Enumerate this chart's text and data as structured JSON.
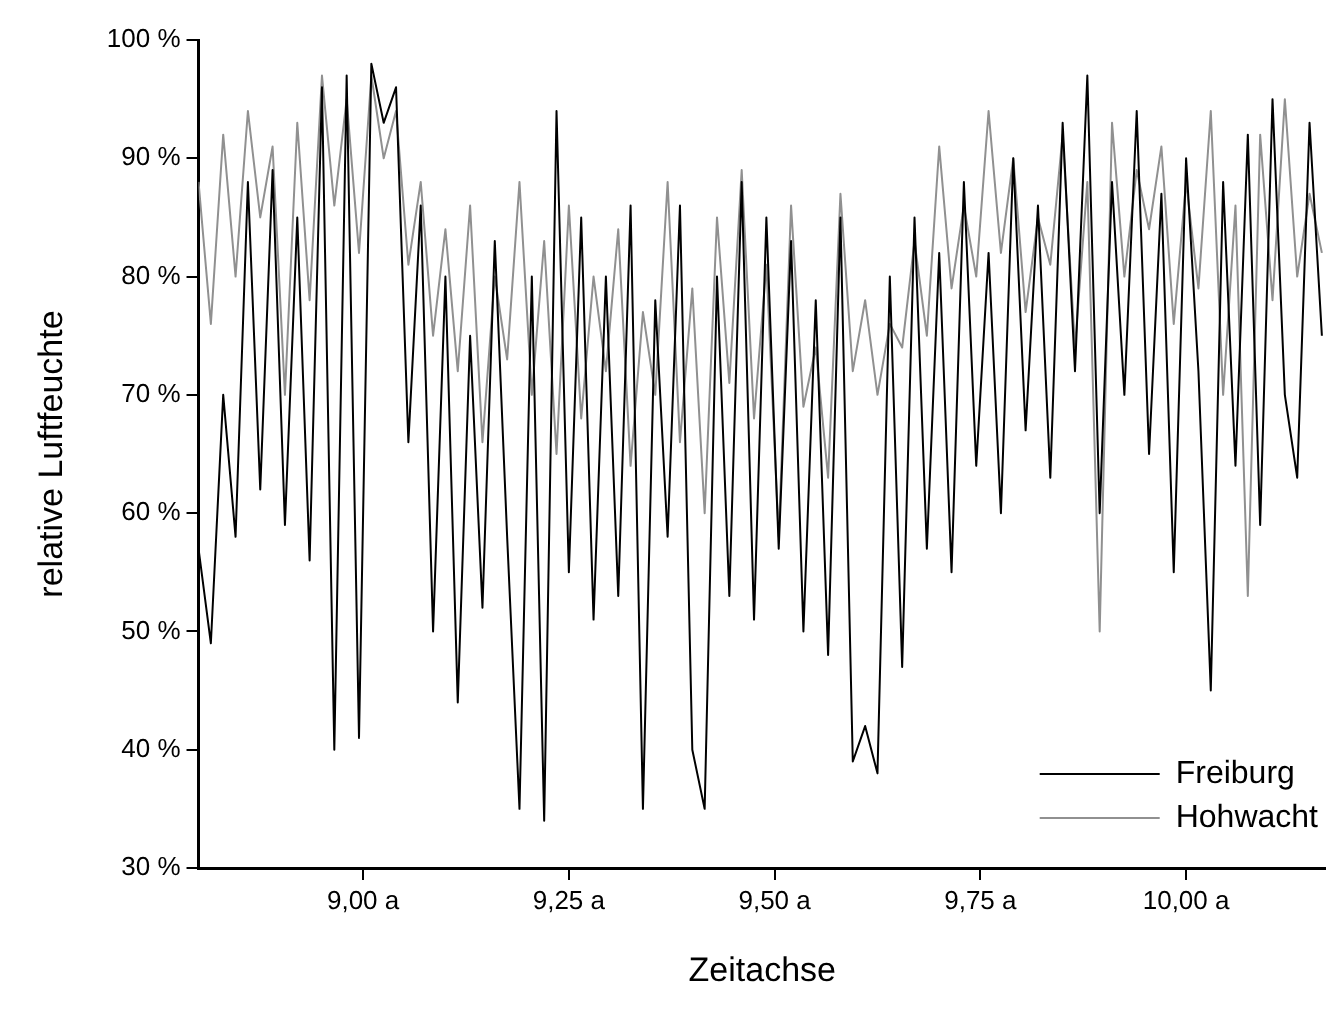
{
  "chart_data": {
    "type": "line",
    "xlabel": "Zeitachse",
    "ylabel": "relative Luftfeuchte",
    "xlim": [
      8.8,
      10.17
    ],
    "ylim": [
      30,
      100
    ],
    "xticks": [
      {
        "value": 9,
        "label": "9,00 a"
      },
      {
        "value": 9.25,
        "label": "9,25 a"
      },
      {
        "value": 9.5,
        "label": "9,50 a"
      },
      {
        "value": 9.75,
        "label": "9,75 a"
      },
      {
        "value": 10,
        "label": "10,00 a"
      }
    ],
    "yticks": [
      {
        "value": 30,
        "label": "30 %"
      },
      {
        "value": 40,
        "label": "40 %"
      },
      {
        "value": 50,
        "label": "50 %"
      },
      {
        "value": 60,
        "label": "60 %"
      },
      {
        "value": 70,
        "label": "70 %"
      },
      {
        "value": 80,
        "label": "80 %"
      },
      {
        "value": 90,
        "label": "90 %"
      },
      {
        "value": 100,
        "label": "100 %"
      }
    ],
    "grid": false,
    "legend": "bottom right",
    "marker": "none",
    "line_style": "solid",
    "x": [
      8.8,
      8.815,
      8.83,
      8.845,
      8.86,
      8.875,
      8.89,
      8.905,
      8.92,
      8.935,
      8.95,
      8.965,
      8.98,
      8.995,
      9.01,
      9.025,
      9.04,
      9.055,
      9.07,
      9.085,
      9.1,
      9.115,
      9.13,
      9.145,
      9.16,
      9.175,
      9.19,
      9.205,
      9.22,
      9.235,
      9.25,
      9.265,
      9.28,
      9.295,
      9.31,
      9.325,
      9.34,
      9.355,
      9.37,
      9.385,
      9.4,
      9.415,
      9.43,
      9.445,
      9.46,
      9.475,
      9.49,
      9.505,
      9.52,
      9.535,
      9.55,
      9.565,
      9.58,
      9.595,
      9.61,
      9.625,
      9.64,
      9.655,
      9.67,
      9.685,
      9.7,
      9.715,
      9.73,
      9.745,
      9.76,
      9.775,
      9.79,
      9.805,
      9.82,
      9.835,
      9.85,
      9.865,
      9.88,
      9.895,
      9.91,
      9.925,
      9.94,
      9.955,
      9.97,
      9.985,
      10,
      10.015,
      10.03,
      10.045,
      10.06,
      10.075,
      10.09,
      10.105,
      10.12,
      10.135,
      10.15,
      10.165
    ],
    "series": [
      {
        "name": "Freiburg",
        "color": "#000000",
        "values": [
          57,
          49,
          70,
          58,
          88,
          62,
          89,
          59,
          85,
          56,
          96,
          40,
          97,
          41,
          98,
          93,
          96,
          66,
          86,
          50,
          80,
          44,
          75,
          52,
          83,
          58,
          35,
          80,
          34,
          94,
          55,
          85,
          51,
          80,
          53,
          86,
          35,
          78,
          58,
          86,
          40,
          35,
          80,
          53,
          88,
          51,
          85,
          57,
          83,
          50,
          78,
          48,
          85,
          39,
          42,
          38,
          80,
          47,
          85,
          57,
          82,
          55,
          88,
          64,
          82,
          60,
          90,
          67,
          86,
          63,
          93,
          72,
          97,
          60,
          88,
          70,
          94,
          65,
          87,
          55,
          90,
          72,
          45,
          88,
          64,
          92,
          59,
          95,
          70,
          63,
          93,
          75
        ]
      },
      {
        "name": "Hohwacht",
        "color": "#909090",
        "values": [
          88,
          76,
          92,
          80,
          94,
          85,
          91,
          70,
          93,
          78,
          97,
          86,
          95,
          82,
          97,
          90,
          94,
          81,
          88,
          75,
          84,
          72,
          86,
          66,
          80,
          73,
          88,
          70,
          83,
          65,
          86,
          68,
          80,
          72,
          84,
          64,
          77,
          70,
          88,
          66,
          79,
          60,
          85,
          71,
          89,
          68,
          81,
          58,
          86,
          69,
          74,
          63,
          87,
          72,
          78,
          70,
          76,
          74,
          83,
          75,
          91,
          79,
          86,
          80,
          94,
          82,
          90,
          77,
          85,
          81,
          92,
          74,
          88,
          50,
          93,
          80,
          89,
          84,
          91,
          76,
          88,
          79,
          94,
          70,
          86,
          53,
          92,
          78,
          95,
          80,
          87,
          82
        ]
      }
    ]
  }
}
